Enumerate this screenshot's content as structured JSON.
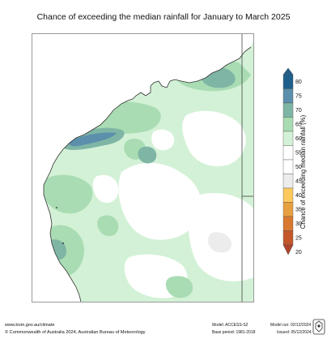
{
  "title": "Chance of exceeding the median rainfall for January to March 2025",
  "colorbar": {
    "label": "Chance of exceeding median rainfall (%)",
    "ticks": [
      "80",
      "75",
      "70",
      "65",
      "60",
      "55",
      "50",
      "45",
      "40",
      "35",
      "30",
      "25",
      "20"
    ],
    "colors": {
      "75-80": "#1f5f8b",
      "70-75": "#5b8fab",
      "65-70": "#7fb5a5",
      "60-65": "#a9dcb3",
      "55-60": "#d3f1d6",
      "50-55": "#ffffff",
      "45-50": "#ffffff",
      "40-45": "#ececec",
      "35-40": "#fdc95c",
      "30-35": "#e7a03f",
      "25-30": "#d9792f",
      "20-25": "#c4562c"
    }
  },
  "map": {
    "region": "Western Australia",
    "dominant_category": "55-65"
  },
  "footer": {
    "website": "www.bom.gov.au/climate",
    "copyright": "© Commonwealth of Australia 2024, Australian Bureau of Meteorology",
    "model": "Model: ACCESS-S2",
    "base_period": "Base period: 1981-2018",
    "model_run": "Model run: 02/12/2024",
    "issued": "Issued: 05/12/2024"
  }
}
